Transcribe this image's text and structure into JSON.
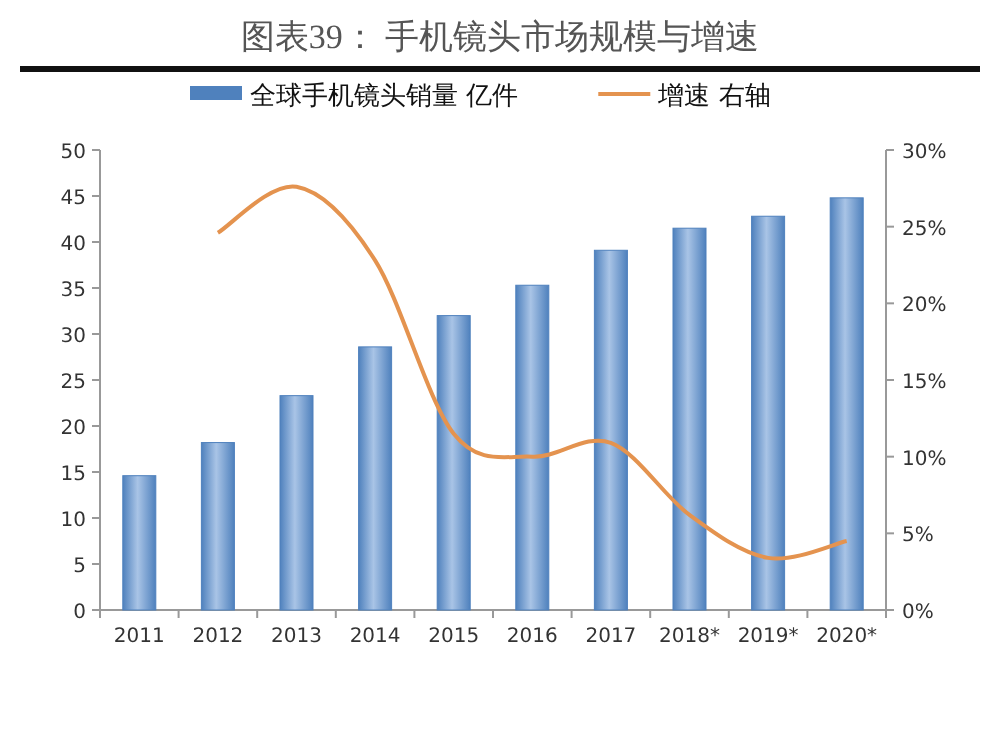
{
  "chart_data": {
    "type": "bar",
    "title": "图表39：  手机镜头市场规模与增速",
    "categories": [
      "2011",
      "2012",
      "2013",
      "2014",
      "2015",
      "2016",
      "2017",
      "2018*",
      "2019*",
      "2020*"
    ],
    "series": [
      {
        "name": "全球手机镜头销量 亿件",
        "color": "#4f81bd",
        "values": [
          14.6,
          18.2,
          23.3,
          28.6,
          32.0,
          35.3,
          39.1,
          41.5,
          42.8,
          44.8
        ]
      },
      {
        "name": "增速 右轴",
        "type": "line",
        "axis": "y2",
        "color": "#e4934f",
        "values": [
          null,
          24.6,
          27.6,
          22.8,
          11.5,
          10.0,
          10.9,
          6.2,
          3.4,
          4.5
        ]
      }
    ],
    "ylim": [
      0,
      50
    ],
    "yticks": [
      0,
      5,
      10,
      15,
      20,
      25,
      30,
      35,
      40,
      45,
      50
    ],
    "y2lim": [
      0,
      30
    ],
    "y2ticks": [
      {
        "value": 0,
        "label": "0%"
      },
      {
        "value": 5,
        "label": "5%"
      },
      {
        "value": 10,
        "label": "10%"
      },
      {
        "value": 15,
        "label": "15%"
      },
      {
        "value": 20,
        "label": "20%"
      },
      {
        "value": 25,
        "label": "25%"
      },
      {
        "value": 30,
        "label": "30%"
      }
    ],
    "legend": "top",
    "grid": false
  }
}
